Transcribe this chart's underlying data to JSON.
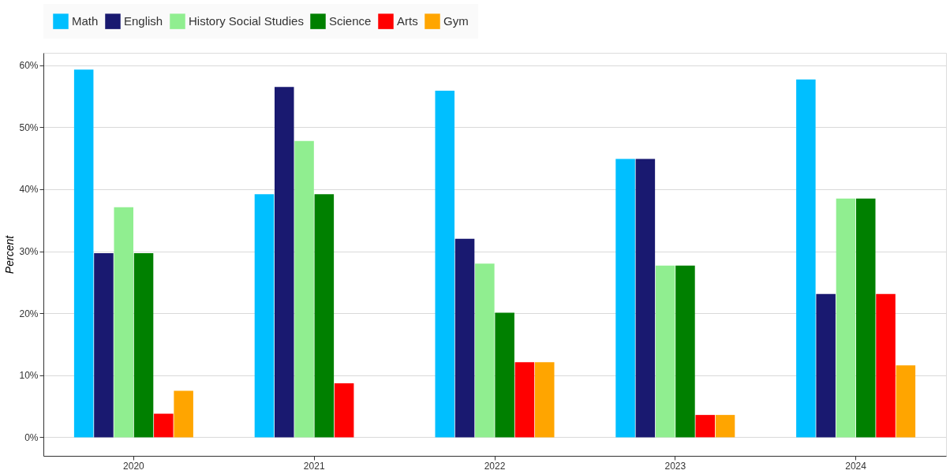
{
  "chart_data": {
    "type": "bar",
    "ylabel": "Percent",
    "categories": [
      "2020",
      "2021",
      "2022",
      "2023",
      "2024"
    ],
    "series": [
      {
        "name": "Math",
        "color": "#00bfff",
        "values": [
          59.3,
          39.2,
          55.9,
          44.9,
          57.7
        ]
      },
      {
        "name": "English",
        "color": "#191970",
        "values": [
          29.7,
          56.5,
          32.0,
          44.9,
          23.1
        ]
      },
      {
        "name": "History Social Studies",
        "color": "#90ee90",
        "values": [
          37.1,
          47.8,
          28.0,
          27.7,
          38.5
        ]
      },
      {
        "name": "Science",
        "color": "#008000",
        "values": [
          29.7,
          39.2,
          20.1,
          27.7,
          38.5
        ]
      },
      {
        "name": "Arts",
        "color": "#ff0000",
        "values": [
          3.8,
          8.7,
          12.1,
          3.6,
          23.1
        ]
      },
      {
        "name": "Gym",
        "color": "#ffa500",
        "values": [
          7.5,
          null,
          12.1,
          3.6,
          11.6
        ]
      }
    ],
    "ylim": [
      -3,
      62
    ],
    "yticks": [
      {
        "value": 0,
        "label": "0%"
      },
      {
        "value": 10,
        "label": "10%"
      },
      {
        "value": 20,
        "label": "20%"
      },
      {
        "value": 30,
        "label": "30%"
      },
      {
        "value": 40,
        "label": "40%"
      },
      {
        "value": 50,
        "label": "50%"
      },
      {
        "value": 60,
        "label": "60%"
      }
    ],
    "grid": "y",
    "legend": "top"
  }
}
